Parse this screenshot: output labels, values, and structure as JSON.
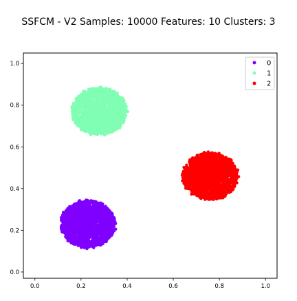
{
  "chart_data": {
    "type": "scatter",
    "title": "SSFCM - V2 Samples: 10000 Features: 10 Clusters: 3",
    "xlabel": "",
    "ylabel": "",
    "xlim": [
      -0.05,
      1.05
    ],
    "ylim": [
      -0.03,
      1.05
    ],
    "xticks": [
      "0.0",
      "0.2",
      "0.4",
      "0.6",
      "0.8",
      "1.0"
    ],
    "yticks": [
      "0.0",
      "0.2",
      "0.4",
      "0.6",
      "0.8",
      "1.0"
    ],
    "grid": false,
    "legend_position": "top-right",
    "series": [
      {
        "name": "0",
        "color": "#8000ff",
        "center": [
          0.23,
          0.23
        ],
        "spread": [
          0.12,
          0.1
        ],
        "count": 1800
      },
      {
        "name": "1",
        "color": "#80ffb4",
        "center": [
          0.28,
          0.77
        ],
        "spread": [
          0.12,
          0.1
        ],
        "count": 1800
      },
      {
        "name": "2",
        "color": "#ff0000",
        "center": [
          0.76,
          0.46
        ],
        "spread": [
          0.12,
          0.1
        ],
        "count": 1800
      }
    ]
  }
}
